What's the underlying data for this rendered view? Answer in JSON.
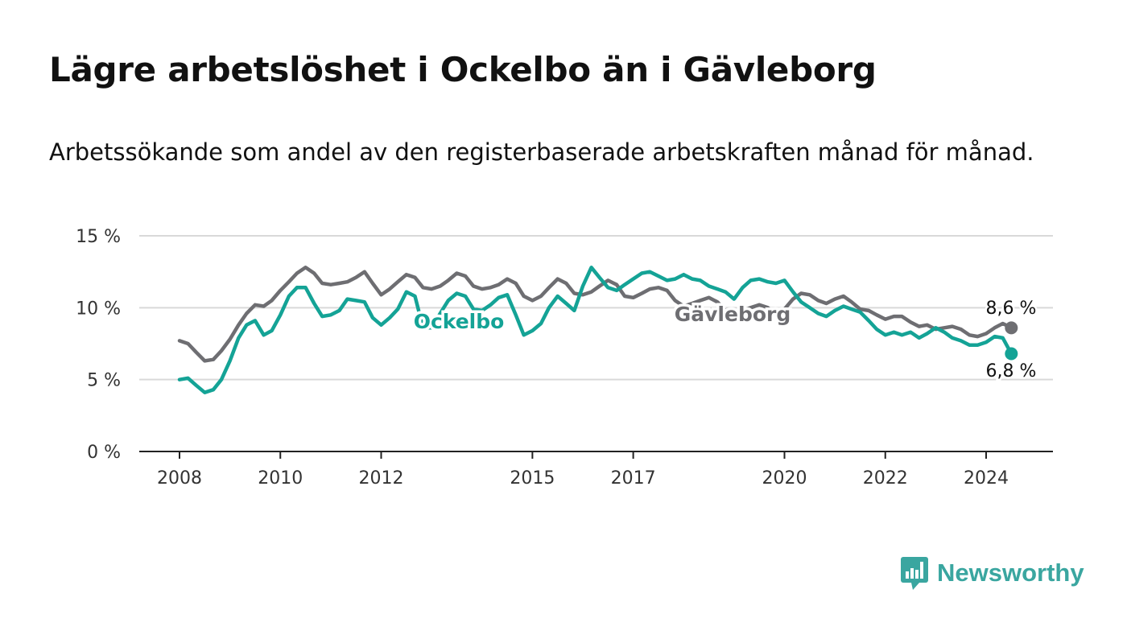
{
  "header": {
    "title": "Lägre arbetslöshet i Ockelbo än i Gävleborg",
    "subtitle": "Arbetssökande som andel av den registerbaserade arbetskraften månad för månad."
  },
  "brand": {
    "name": "Newsworthy",
    "icon": "newsworthy-logo-icon"
  },
  "chart_data": {
    "type": "line",
    "title": "Lägre arbetslöshet i Ockelbo än i Gävleborg",
    "subtitle": "Arbetssökande som andel av den registerbaserade arbetskraften månad för månad.",
    "xlim": [
      2008.0,
      2024.5
    ],
    "ylim": [
      0,
      15
    ],
    "y_ticks": [
      {
        "value": 0,
        "label": "0 %"
      },
      {
        "value": 5,
        "label": "5 %"
      },
      {
        "value": 10,
        "label": "10 %"
      },
      {
        "value": 15,
        "label": "15 %"
      }
    ],
    "x_ticks": [
      {
        "value": 2008,
        "label": "2008"
      },
      {
        "value": 2010,
        "label": "2010"
      },
      {
        "value": 2012,
        "label": "2012"
      },
      {
        "value": 2015,
        "label": "2015"
      },
      {
        "value": 2017,
        "label": "2017"
      },
      {
        "value": 2020,
        "label": "2020"
      },
      {
        "value": 2022,
        "label": "2022"
      },
      {
        "value": 2024,
        "label": "2024"
      }
    ],
    "grid": true,
    "series": [
      {
        "name": "Gävleborg",
        "color": "#6e6e72",
        "end_label": "8,6 %",
        "points": [
          [
            2008.0,
            7.7
          ],
          [
            2008.17,
            7.5
          ],
          [
            2008.33,
            6.9
          ],
          [
            2008.5,
            6.3
          ],
          [
            2008.67,
            6.4
          ],
          [
            2008.83,
            7.0
          ],
          [
            2009.0,
            7.8
          ],
          [
            2009.17,
            8.8
          ],
          [
            2009.33,
            9.6
          ],
          [
            2009.5,
            10.2
          ],
          [
            2009.67,
            10.1
          ],
          [
            2009.83,
            10.5
          ],
          [
            2010.0,
            11.2
          ],
          [
            2010.17,
            11.8
          ],
          [
            2010.33,
            12.4
          ],
          [
            2010.5,
            12.8
          ],
          [
            2010.67,
            12.4
          ],
          [
            2010.83,
            11.7
          ],
          [
            2011.0,
            11.6
          ],
          [
            2011.17,
            11.7
          ],
          [
            2011.33,
            11.8
          ],
          [
            2011.5,
            12.1
          ],
          [
            2011.67,
            12.5
          ],
          [
            2011.83,
            11.7
          ],
          [
            2012.0,
            10.9
          ],
          [
            2012.17,
            11.3
          ],
          [
            2012.33,
            11.8
          ],
          [
            2012.5,
            12.3
          ],
          [
            2012.67,
            12.1
          ],
          [
            2012.83,
            11.4
          ],
          [
            2013.0,
            11.3
          ],
          [
            2013.17,
            11.5
          ],
          [
            2013.33,
            11.9
          ],
          [
            2013.5,
            12.4
          ],
          [
            2013.67,
            12.2
          ],
          [
            2013.83,
            11.5
          ],
          [
            2014.0,
            11.3
          ],
          [
            2014.17,
            11.4
          ],
          [
            2014.33,
            11.6
          ],
          [
            2014.5,
            12.0
          ],
          [
            2014.67,
            11.7
          ],
          [
            2014.83,
            10.8
          ],
          [
            2015.0,
            10.5
          ],
          [
            2015.17,
            10.8
          ],
          [
            2015.33,
            11.4
          ],
          [
            2015.5,
            12.0
          ],
          [
            2015.67,
            11.7
          ],
          [
            2015.83,
            11.0
          ],
          [
            2016.0,
            10.9
          ],
          [
            2016.17,
            11.1
          ],
          [
            2016.33,
            11.5
          ],
          [
            2016.5,
            11.9
          ],
          [
            2016.67,
            11.6
          ],
          [
            2016.83,
            10.8
          ],
          [
            2017.0,
            10.7
          ],
          [
            2017.17,
            11.0
          ],
          [
            2017.33,
            11.3
          ],
          [
            2017.5,
            11.4
          ],
          [
            2017.67,
            11.2
          ],
          [
            2017.83,
            10.5
          ],
          [
            2018.0,
            10.1
          ],
          [
            2018.17,
            10.3
          ],
          [
            2018.33,
            10.5
          ],
          [
            2018.5,
            10.7
          ],
          [
            2018.67,
            10.4
          ],
          [
            2018.83,
            9.8
          ],
          [
            2019.0,
            9.6
          ],
          [
            2019.17,
            9.8
          ],
          [
            2019.33,
            10.0
          ],
          [
            2019.5,
            10.2
          ],
          [
            2019.67,
            10.0
          ],
          [
            2019.83,
            9.5
          ],
          [
            2020.0,
            9.9
          ],
          [
            2020.17,
            10.6
          ],
          [
            2020.33,
            11.0
          ],
          [
            2020.5,
            10.9
          ],
          [
            2020.67,
            10.5
          ],
          [
            2020.83,
            10.3
          ],
          [
            2021.0,
            10.6
          ],
          [
            2021.17,
            10.8
          ],
          [
            2021.33,
            10.4
          ],
          [
            2021.5,
            9.9
          ],
          [
            2021.67,
            9.8
          ],
          [
            2021.83,
            9.5
          ],
          [
            2022.0,
            9.2
          ],
          [
            2022.17,
            9.4
          ],
          [
            2022.33,
            9.4
          ],
          [
            2022.5,
            9.0
          ],
          [
            2022.67,
            8.7
          ],
          [
            2022.83,
            8.8
          ],
          [
            2023.0,
            8.5
          ],
          [
            2023.17,
            8.6
          ],
          [
            2023.33,
            8.7
          ],
          [
            2023.5,
            8.5
          ],
          [
            2023.67,
            8.1
          ],
          [
            2023.83,
            8.0
          ],
          [
            2024.0,
            8.2
          ],
          [
            2024.17,
            8.6
          ],
          [
            2024.33,
            8.9
          ],
          [
            2024.5,
            8.6
          ]
        ]
      },
      {
        "name": "Ockelbo",
        "color": "#14a396",
        "end_label": "6,8 %",
        "points": [
          [
            2008.0,
            5.0
          ],
          [
            2008.17,
            5.1
          ],
          [
            2008.33,
            4.6
          ],
          [
            2008.5,
            4.1
          ],
          [
            2008.67,
            4.3
          ],
          [
            2008.83,
            5.0
          ],
          [
            2009.0,
            6.3
          ],
          [
            2009.17,
            7.9
          ],
          [
            2009.33,
            8.8
          ],
          [
            2009.5,
            9.1
          ],
          [
            2009.67,
            8.1
          ],
          [
            2009.83,
            8.4
          ],
          [
            2010.0,
            9.5
          ],
          [
            2010.17,
            10.8
          ],
          [
            2010.33,
            11.4
          ],
          [
            2010.5,
            11.4
          ],
          [
            2010.67,
            10.3
          ],
          [
            2010.83,
            9.4
          ],
          [
            2011.0,
            9.5
          ],
          [
            2011.17,
            9.8
          ],
          [
            2011.33,
            10.6
          ],
          [
            2011.5,
            10.5
          ],
          [
            2011.67,
            10.4
          ],
          [
            2011.83,
            9.3
          ],
          [
            2012.0,
            8.8
          ],
          [
            2012.17,
            9.3
          ],
          [
            2012.33,
            9.9
          ],
          [
            2012.5,
            11.1
          ],
          [
            2012.67,
            10.8
          ],
          [
            2012.83,
            8.6
          ],
          [
            2013.0,
            8.6
          ],
          [
            2013.17,
            9.6
          ],
          [
            2013.33,
            10.5
          ],
          [
            2013.5,
            11.0
          ],
          [
            2013.67,
            10.8
          ],
          [
            2013.83,
            9.9
          ],
          [
            2014.0,
            9.8
          ],
          [
            2014.17,
            10.2
          ],
          [
            2014.33,
            10.7
          ],
          [
            2014.5,
            10.9
          ],
          [
            2014.67,
            9.5
          ],
          [
            2014.83,
            8.1
          ],
          [
            2015.0,
            8.4
          ],
          [
            2015.17,
            8.9
          ],
          [
            2015.33,
            10.0
          ],
          [
            2015.5,
            10.8
          ],
          [
            2015.67,
            10.3
          ],
          [
            2015.83,
            9.8
          ],
          [
            2016.0,
            11.5
          ],
          [
            2016.17,
            12.8
          ],
          [
            2016.33,
            12.1
          ],
          [
            2016.5,
            11.4
          ],
          [
            2016.67,
            11.2
          ],
          [
            2016.83,
            11.6
          ],
          [
            2017.0,
            12.0
          ],
          [
            2017.17,
            12.4
          ],
          [
            2017.33,
            12.5
          ],
          [
            2017.5,
            12.2
          ],
          [
            2017.67,
            11.9
          ],
          [
            2017.83,
            12.0
          ],
          [
            2018.0,
            12.3
          ],
          [
            2018.17,
            12.0
          ],
          [
            2018.33,
            11.9
          ],
          [
            2018.5,
            11.5
          ],
          [
            2018.67,
            11.3
          ],
          [
            2018.83,
            11.1
          ],
          [
            2019.0,
            10.6
          ],
          [
            2019.17,
            11.4
          ],
          [
            2019.33,
            11.9
          ],
          [
            2019.5,
            12.0
          ],
          [
            2019.67,
            11.8
          ],
          [
            2019.83,
            11.7
          ],
          [
            2020.0,
            11.9
          ],
          [
            2020.17,
            11.1
          ],
          [
            2020.33,
            10.4
          ],
          [
            2020.5,
            10.0
          ],
          [
            2020.67,
            9.6
          ],
          [
            2020.83,
            9.4
          ],
          [
            2021.0,
            9.8
          ],
          [
            2021.17,
            10.1
          ],
          [
            2021.33,
            9.9
          ],
          [
            2021.5,
            9.7
          ],
          [
            2021.67,
            9.1
          ],
          [
            2021.83,
            8.5
          ],
          [
            2022.0,
            8.1
          ],
          [
            2022.17,
            8.3
          ],
          [
            2022.33,
            8.1
          ],
          [
            2022.5,
            8.3
          ],
          [
            2022.67,
            7.9
          ],
          [
            2022.83,
            8.2
          ],
          [
            2023.0,
            8.6
          ],
          [
            2023.17,
            8.3
          ],
          [
            2023.33,
            7.9
          ],
          [
            2023.5,
            7.7
          ],
          [
            2023.67,
            7.4
          ],
          [
            2023.83,
            7.4
          ],
          [
            2024.0,
            7.6
          ],
          [
            2024.17,
            8.0
          ],
          [
            2024.33,
            7.9
          ],
          [
            2024.5,
            6.8
          ]
        ]
      }
    ]
  }
}
